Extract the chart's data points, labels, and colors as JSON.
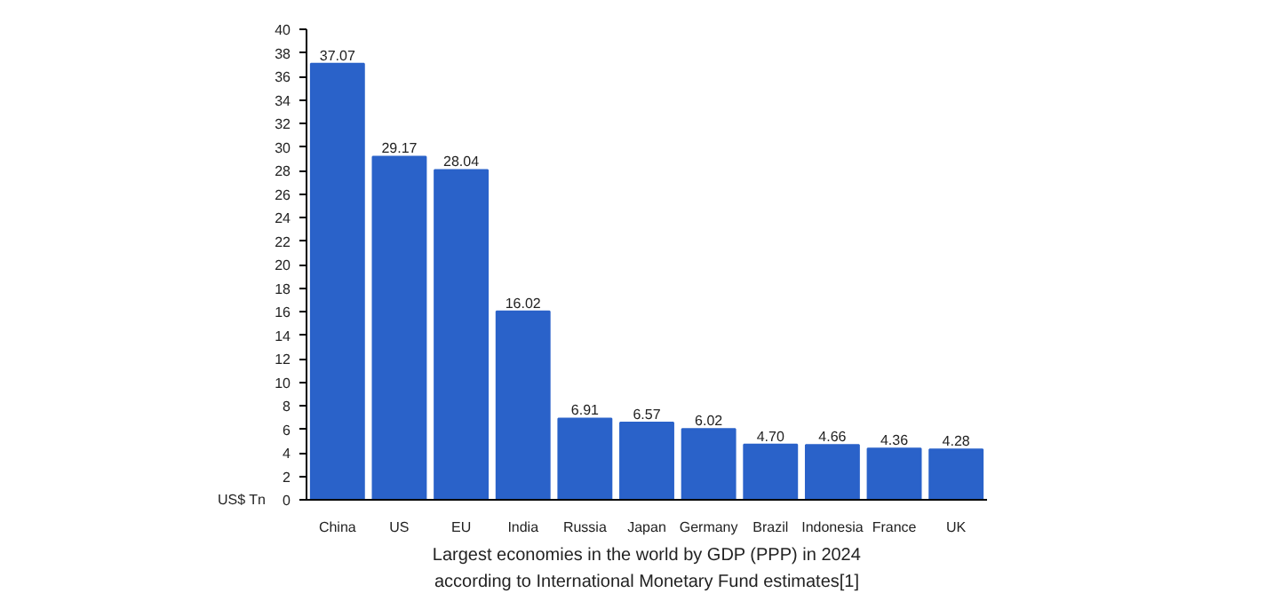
{
  "chart_data": {
    "type": "bar",
    "ylabel": "US$ Tn",
    "categories": [
      "China",
      "US",
      "EU",
      "India",
      "Russia",
      "Japan",
      "Germany",
      "Brazil",
      "Indonesia",
      "France",
      "UK"
    ],
    "values": [
      37.07,
      29.17,
      28.04,
      16.02,
      6.91,
      6.57,
      6.02,
      4.7,
      4.66,
      4.36,
      4.28
    ],
    "value_labels": [
      "37.07",
      "29.17",
      "28.04",
      "16.02",
      "6.91",
      "6.57",
      "6.02",
      "4.70",
      "4.66",
      "4.36",
      "4.28"
    ],
    "color": "#2a62c9",
    "ylim": [
      0,
      40
    ],
    "yticks": [
      0,
      2,
      4,
      6,
      8,
      10,
      12,
      14,
      16,
      18,
      20,
      22,
      24,
      26,
      28,
      30,
      32,
      34,
      36,
      38,
      40
    ],
    "grid": false,
    "annotations": [
      "Largest economies in the world by GDP (PPP) in 2024",
      "according to International Monetary Fund estimates[1]"
    ]
  }
}
